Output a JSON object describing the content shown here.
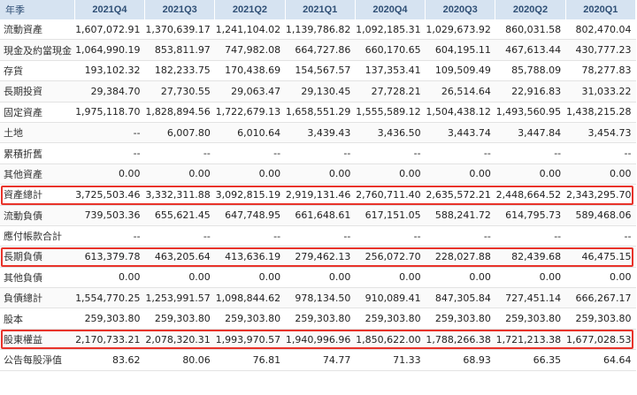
{
  "columns": [
    "年季",
    "2021Q4",
    "2021Q3",
    "2021Q2",
    "2021Q1",
    "2020Q4",
    "2020Q3",
    "2020Q2",
    "2020Q1"
  ],
  "rows": [
    {
      "label": "流動資產",
      "values": [
        "1,607,072.91",
        "1,370,639.17",
        "1,241,104.02",
        "1,139,786.82",
        "1,092,185.31",
        "1,029,673.92",
        "860,031.58",
        "802,470.04"
      ]
    },
    {
      "label": "現金及約當現金",
      "values": [
        "1,064,990.19",
        "853,811.97",
        "747,982.08",
        "664,727.86",
        "660,170.65",
        "604,195.11",
        "467,613.44",
        "430,777.23"
      ]
    },
    {
      "label": "存貨",
      "values": [
        "193,102.32",
        "182,233.75",
        "170,438.69",
        "154,567.57",
        "137,353.41",
        "109,509.49",
        "85,788.09",
        "78,277.83"
      ]
    },
    {
      "label": "長期投資",
      "values": [
        "29,384.70",
        "27,730.55",
        "29,063.47",
        "29,130.45",
        "27,728.21",
        "26,514.64",
        "22,916.83",
        "31,033.22"
      ]
    },
    {
      "label": "固定資產",
      "values": [
        "1,975,118.70",
        "1,828,894.56",
        "1,722,679.13",
        "1,658,551.29",
        "1,555,589.12",
        "1,504,438.12",
        "1,493,560.95",
        "1,438,215.28"
      ]
    },
    {
      "label": "土地",
      "values": [
        "--",
        "6,007.80",
        "6,010.64",
        "3,439.43",
        "3,436.50",
        "3,443.74",
        "3,447.84",
        "3,454.73"
      ]
    },
    {
      "label": "累積折舊",
      "values": [
        "--",
        "--",
        "--",
        "--",
        "--",
        "--",
        "--",
        "--"
      ]
    },
    {
      "label": "其他資產",
      "values": [
        "0.00",
        "0.00",
        "0.00",
        "0.00",
        "0.00",
        "0.00",
        "0.00",
        "0.00"
      ]
    },
    {
      "label": "資產總計",
      "values": [
        "3,725,503.46",
        "3,332,311.88",
        "3,092,815.19",
        "2,919,131.46",
        "2,760,711.40",
        "2,635,572.21",
        "2,448,664.52",
        "2,343,295.70"
      ]
    },
    {
      "label": "流動負債",
      "values": [
        "739,503.36",
        "655,621.45",
        "647,748.95",
        "661,648.61",
        "617,151.05",
        "588,241.72",
        "614,795.73",
        "589,468.06"
      ]
    },
    {
      "label": "應付帳款合計",
      "values": [
        "--",
        "--",
        "--",
        "--",
        "--",
        "--",
        "--",
        "--"
      ]
    },
    {
      "label": "長期負債",
      "values": [
        "613,379.78",
        "463,205.64",
        "413,636.19",
        "279,462.13",
        "256,072.70",
        "228,027.88",
        "82,439.68",
        "46,475.15"
      ]
    },
    {
      "label": "其他負債",
      "values": [
        "0.00",
        "0.00",
        "0.00",
        "0.00",
        "0.00",
        "0.00",
        "0.00",
        "0.00"
      ]
    },
    {
      "label": "負債總計",
      "values": [
        "1,554,770.25",
        "1,253,991.57",
        "1,098,844.62",
        "978,134.50",
        "910,089.41",
        "847,305.84",
        "727,451.14",
        "666,267.17"
      ]
    },
    {
      "label": "股本",
      "values": [
        "259,303.80",
        "259,303.80",
        "259,303.80",
        "259,303.80",
        "259,303.80",
        "259,303.80",
        "259,303.80",
        "259,303.80"
      ]
    },
    {
      "label": "股東權益",
      "values": [
        "2,170,733.21",
        "2,078,320.31",
        "1,993,970.57",
        "1,940,996.96",
        "1,850,622.00",
        "1,788,266.38",
        "1,721,213.38",
        "1,677,028.53"
      ]
    },
    {
      "label": "公告每股淨值",
      "values": [
        "83.62",
        "80.06",
        "76.81",
        "74.77",
        "71.33",
        "68.93",
        "66.35",
        "64.64"
      ]
    }
  ],
  "highlights": [
    "資產總計",
    "長期負債",
    "股東權益"
  ],
  "colors": {
    "header_bg": "#d6e3f1",
    "header_text": "#2f4f75",
    "highlight": "#e8332a"
  }
}
